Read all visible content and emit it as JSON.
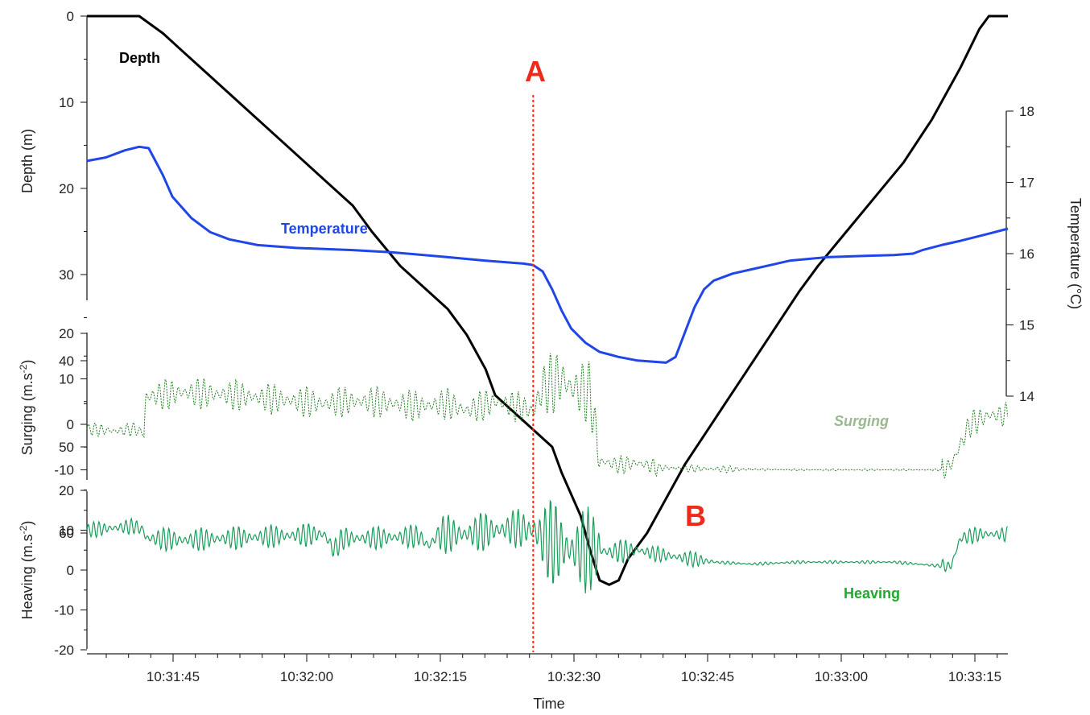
{
  "chart_data": {
    "type": "line",
    "colors": {
      "depth": "#000000",
      "temperature": "#2146e6",
      "surging": "#217a21",
      "surging_label": "#9bb98f",
      "heaving": "#1b9c5a",
      "heaving_label": "#1faa2b",
      "marker": "#ee2a1a"
    },
    "x": {
      "label": "Time",
      "range_s": [
        0,
        97
      ],
      "ticks": [
        {
          "t": 10,
          "label": "10:31:45"
        },
        {
          "t": 25,
          "label": "10:32:00"
        },
        {
          "t": 40,
          "label": "10:32:15"
        },
        {
          "t": 55,
          "label": "10:32:30"
        },
        {
          "t": 70,
          "label": "10:32:45"
        },
        {
          "t": 85,
          "label": "10:33:00"
        },
        {
          "t": 100,
          "label": "10:33:15"
        }
      ]
    },
    "panels": {
      "depth": {
        "ylabel": "Depth (m)",
        "yrange": [
          0,
          66
        ],
        "reversed": true,
        "ticks": [
          "0",
          "10",
          "20",
          "30",
          "40",
          "50",
          "60"
        ],
        "tick_values": [
          0,
          10,
          20,
          30,
          40,
          50,
          60
        ]
      },
      "temperature": {
        "ylabel": "Temperature (°C)",
        "yrange": [
          14,
          18
        ],
        "ticks": [
          "14",
          "15",
          "16",
          "17",
          "18"
        ],
        "tick_values": [
          14,
          15,
          16,
          17,
          18
        ]
      },
      "surging": {
        "ylabel": "Surging (m.s",
        "ylabel_sup": "-2",
        "ylabel_end": ")",
        "yrange": [
          -12,
          20
        ],
        "ticks": [
          "-10",
          "0",
          "10",
          "20"
        ],
        "tick_values": [
          -10,
          0,
          10,
          20
        ]
      },
      "heaving": {
        "ylabel": "Heaving (m.s",
        "ylabel_sup": "-2",
        "ylabel_end": ")",
        "yrange": [
          -20,
          20
        ],
        "ticks": [
          "-20",
          "-10",
          "0",
          "10",
          "20"
        ],
        "tick_values": [
          -20,
          -10,
          0,
          10,
          20
        ]
      }
    },
    "series": [
      {
        "name": "Depth",
        "panel": "depth",
        "points": [
          [
            0,
            0
          ],
          [
            5.5,
            0
          ],
          [
            8,
            2
          ],
          [
            10,
            4
          ],
          [
            13,
            7
          ],
          [
            16,
            10
          ],
          [
            20,
            14
          ],
          [
            25,
            19
          ],
          [
            28,
            22
          ],
          [
            30,
            25
          ],
          [
            33,
            29
          ],
          [
            36,
            32
          ],
          [
            38,
            34
          ],
          [
            40,
            37
          ],
          [
            42,
            41
          ],
          [
            43,
            44
          ],
          [
            46,
            47
          ],
          [
            49,
            50
          ],
          [
            50,
            53
          ],
          [
            52,
            58
          ],
          [
            53,
            62
          ],
          [
            54,
            65.5
          ],
          [
            55,
            66
          ],
          [
            56,
            65.5
          ],
          [
            57,
            63
          ],
          [
            59,
            60
          ],
          [
            61,
            56
          ],
          [
            63,
            52
          ],
          [
            66,
            47
          ],
          [
            69,
            42
          ],
          [
            72,
            37
          ],
          [
            75,
            32
          ],
          [
            77,
            29
          ],
          [
            80,
            25
          ],
          [
            83,
            21
          ],
          [
            86,
            17
          ],
          [
            89,
            12
          ],
          [
            92,
            6
          ],
          [
            94,
            1.5
          ],
          [
            95,
            0
          ],
          [
            97,
            0
          ]
        ]
      },
      {
        "name": "Temperature",
        "panel": "temperature",
        "points": [
          [
            0,
            17.3
          ],
          [
            2,
            17.35
          ],
          [
            4,
            17.45
          ],
          [
            5.5,
            17.5
          ],
          [
            6.5,
            17.48
          ],
          [
            8,
            17.1
          ],
          [
            9,
            16.8
          ],
          [
            11,
            16.5
          ],
          [
            13,
            16.3
          ],
          [
            15,
            16.2
          ],
          [
            18,
            16.12
          ],
          [
            22,
            16.08
          ],
          [
            28,
            16.05
          ],
          [
            32,
            16.02
          ],
          [
            38,
            15.95
          ],
          [
            42,
            15.9
          ],
          [
            46,
            15.86
          ],
          [
            47,
            15.84
          ],
          [
            48,
            15.75
          ],
          [
            49,
            15.5
          ],
          [
            50,
            15.2
          ],
          [
            51,
            14.95
          ],
          [
            52.5,
            14.75
          ],
          [
            54,
            14.62
          ],
          [
            56,
            14.55
          ],
          [
            58,
            14.5
          ],
          [
            60,
            14.48
          ],
          [
            61,
            14.47
          ],
          [
            62,
            14.55
          ],
          [
            63,
            14.9
          ],
          [
            64,
            15.25
          ],
          [
            65,
            15.5
          ],
          [
            66,
            15.62
          ],
          [
            68,
            15.72
          ],
          [
            70,
            15.78
          ],
          [
            72,
            15.84
          ],
          [
            74,
            15.9
          ],
          [
            78,
            15.95
          ],
          [
            82,
            15.97
          ],
          [
            85,
            15.98
          ],
          [
            87,
            16.0
          ],
          [
            88,
            16.05
          ],
          [
            90,
            16.12
          ],
          [
            92,
            16.18
          ],
          [
            95,
            16.28
          ],
          [
            97,
            16.35
          ]
        ]
      },
      {
        "name": "Surging",
        "panel": "surging",
        "points": [
          [
            0,
            -1
          ],
          [
            3,
            -1.5
          ],
          [
            5,
            -1
          ],
          [
            6,
            -2
          ],
          [
            6.2,
            6
          ],
          [
            10,
            7
          ],
          [
            15,
            6.5
          ],
          [
            20,
            5.5
          ],
          [
            25,
            4.5
          ],
          [
            27,
            5
          ],
          [
            30,
            5
          ],
          [
            35,
            4
          ],
          [
            38,
            4.5
          ],
          [
            40,
            3
          ],
          [
            43,
            5
          ],
          [
            45,
            4
          ],
          [
            47,
            3
          ],
          [
            48,
            8
          ],
          [
            50,
            10
          ],
          [
            51,
            8
          ],
          [
            53,
            7
          ],
          [
            54,
            -8
          ],
          [
            56,
            -9
          ],
          [
            58,
            -8.5
          ],
          [
            60,
            -9.5
          ],
          [
            65,
            -9.8
          ],
          [
            70,
            -9.9
          ],
          [
            75,
            -10
          ],
          [
            80,
            -10
          ],
          [
            90,
            -10
          ],
          [
            91,
            -9
          ],
          [
            93,
            0
          ],
          [
            95,
            2
          ],
          [
            97,
            2
          ]
        ]
      },
      {
        "name": "Heaving",
        "panel": "heaving",
        "points": [
          [
            0,
            10
          ],
          [
            5,
            11
          ],
          [
            6,
            10
          ],
          [
            6.2,
            8
          ],
          [
            10,
            7.5
          ],
          [
            15,
            8
          ],
          [
            20,
            8.5
          ],
          [
            25,
            9
          ],
          [
            26,
            5
          ],
          [
            27,
            8
          ],
          [
            30,
            8
          ],
          [
            35,
            8.5
          ],
          [
            36,
            6
          ],
          [
            37,
            9
          ],
          [
            40,
            9
          ],
          [
            43,
            10
          ],
          [
            45,
            10.5
          ],
          [
            47,
            10
          ],
          [
            48,
            8
          ],
          [
            50,
            6
          ],
          [
            51,
            5
          ],
          [
            52,
            5
          ],
          [
            54,
            5
          ],
          [
            55,
            4.5
          ],
          [
            58,
            5
          ],
          [
            60,
            4
          ],
          [
            63,
            3
          ],
          [
            66,
            2
          ],
          [
            70,
            1.5
          ],
          [
            75,
            2
          ],
          [
            80,
            2
          ],
          [
            85,
            2
          ],
          [
            90,
            1
          ],
          [
            91,
            1
          ],
          [
            92,
            8
          ],
          [
            94,
            9
          ],
          [
            97,
            9
          ]
        ]
      }
    ],
    "series_labels": {
      "depth": "Depth",
      "temperature": "Temperature",
      "surging": "Surging",
      "heaving": "Heaving"
    },
    "annotations": [
      {
        "label": "A",
        "type": "vertical-line",
        "t": 47
      },
      {
        "label": "B",
        "type": "text"
      }
    ]
  }
}
